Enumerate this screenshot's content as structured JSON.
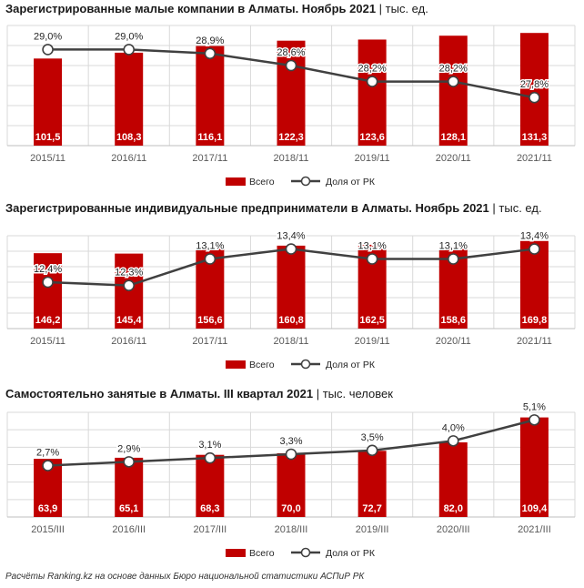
{
  "colors": {
    "bar": "#c00000",
    "line": "#404040",
    "grid": "#d9d9d9",
    "axis": "#bfbfbf"
  },
  "footer": "Расчёты Ranking.kz на основе данных Бюро национальной статистики АСПиР РК",
  "chart_data": [
    {
      "type": "bar",
      "title": "Зарегистрированные малые компании в Алматы. Ноябрь 2021",
      "unit": "| тыс. ед.",
      "categories": [
        "2015/11",
        "2016/11",
        "2017/11",
        "2018/11",
        "2019/11",
        "2020/11",
        "2021/11"
      ],
      "series": [
        {
          "name": "Всего",
          "values": [
            101.5,
            108.3,
            116.1,
            122.3,
            123.6,
            128.1,
            131.3
          ],
          "labels": [
            "101,5",
            "108,3",
            "116,1",
            "122,3",
            "123,6",
            "128,1",
            "131,3"
          ]
        },
        {
          "name": "Доля от РК",
          "type": "line",
          "values": [
            29.0,
            29.0,
            28.9,
            28.6,
            28.2,
            28.2,
            27.8
          ],
          "labels": [
            "29,0%",
            "29,0%",
            "28,9%",
            "28,6%",
            "28,2%",
            "28,2%",
            "27,8%"
          ]
        }
      ],
      "legend_position": "bottom-center",
      "grid": true
    },
    {
      "type": "bar",
      "title": "Зарегистрированные индивидуальные предприниматели в Алматы. Ноябрь 2021",
      "unit": "| тыс. ед.",
      "categories": [
        "2015/11",
        "2016/11",
        "2017/11",
        "2018/11",
        "2019/11",
        "2020/11",
        "2021/11"
      ],
      "series": [
        {
          "name": "Всего",
          "values": [
            146.2,
            145.4,
            156.6,
            160.8,
            162.5,
            158.6,
            169.8
          ],
          "labels": [
            "146,2",
            "145,4",
            "156,6",
            "160,8",
            "162,5",
            "158,6",
            "169,8"
          ]
        },
        {
          "name": "Доля от РК",
          "type": "line",
          "values": [
            12.4,
            12.3,
            13.1,
            13.4,
            13.1,
            13.1,
            13.4
          ],
          "labels": [
            "12,4%",
            "12,3%",
            "13,1%",
            "13,4%",
            "13,1%",
            "13,1%",
            "13,4%"
          ]
        }
      ],
      "legend_position": "bottom-center",
      "grid": true
    },
    {
      "type": "bar",
      "title": "Самостоятельно занятые в Алматы. III квартал 2021",
      "unit": "| тыс. человек",
      "categories": [
        "2015/III",
        "2016/III",
        "2017/III",
        "2018/III",
        "2019/III",
        "2020/III",
        "2021/III"
      ],
      "series": [
        {
          "name": "Всего",
          "values": [
            63.9,
            65.1,
            68.3,
            70.0,
            72.7,
            82.0,
            109.4
          ],
          "labels": [
            "63,9",
            "65,1",
            "68,3",
            "70,0",
            "72,7",
            "82,0",
            "109,4"
          ]
        },
        {
          "name": "Доля от РК",
          "type": "line",
          "values": [
            2.7,
            2.9,
            3.1,
            3.3,
            3.5,
            4.0,
            5.1
          ],
          "labels": [
            "2,7%",
            "2,9%",
            "3,1%",
            "3,3%",
            "3,5%",
            "4,0%",
            "5,1%"
          ]
        }
      ],
      "legend_position": "bottom-center",
      "grid": true
    }
  ]
}
